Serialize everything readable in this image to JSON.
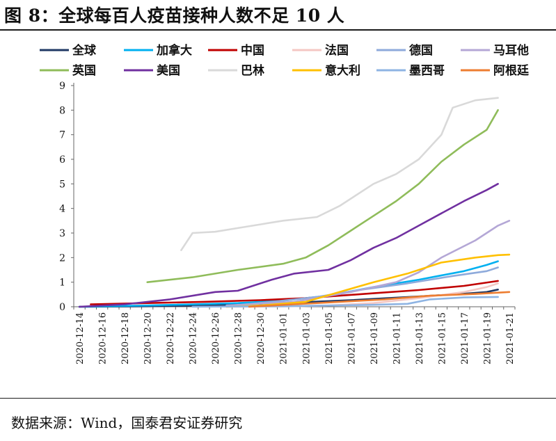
{
  "title": "图 8：全球每百人疫苗接种人数不足 10 人",
  "source": "数据来源：Wind，国泰君安证券研究",
  "chart_data": {
    "type": "line",
    "x_ticks": [
      "2020-12-14",
      "2020-12-16",
      "2020-12-18",
      "2020-12-20",
      "2020-12-22",
      "2020-12-24",
      "2020-12-26",
      "2020-12-28",
      "2020-12-30",
      "2021-01-01",
      "2021-01-03",
      "2021-01-05",
      "2021-01-07",
      "2021-01-09",
      "2021-01-11",
      "2021-01-13",
      "2021-01-15",
      "2021-01-17",
      "2021-01-19",
      "2021-01-21"
    ],
    "ylim": [
      0,
      9
    ],
    "y_ticks": [
      "0",
      "1",
      "2",
      "3",
      "4",
      "5",
      "6",
      "7",
      "8",
      "9"
    ],
    "legend_position": "top",
    "series": [
      {
        "name": "全球",
        "color": "#1f3864",
        "points": [
          [
            "2020-12-14",
            0.0
          ],
          [
            "2020-12-20",
            0.02
          ],
          [
            "2020-12-26",
            0.06
          ],
          [
            "2021-01-01",
            0.15
          ],
          [
            "2021-01-07",
            0.27
          ],
          [
            "2021-01-13",
            0.42
          ],
          [
            "2021-01-17",
            0.53
          ],
          [
            "2021-01-19",
            0.6
          ],
          [
            "2021-01-20",
            0.7
          ]
        ]
      },
      {
        "name": "加拿大",
        "color": "#00b0f0",
        "points": [
          [
            "2020-12-14",
            0.0
          ],
          [
            "2020-12-16",
            0.02
          ],
          [
            "2020-12-20",
            0.05
          ],
          [
            "2020-12-24",
            0.1
          ],
          [
            "2020-12-28",
            0.15
          ],
          [
            "2021-01-01",
            0.25
          ],
          [
            "2021-01-05",
            0.45
          ],
          [
            "2021-01-09",
            0.8
          ],
          [
            "2021-01-13",
            1.1
          ],
          [
            "2021-01-17",
            1.45
          ],
          [
            "2021-01-19",
            1.7
          ],
          [
            "2021-01-20",
            1.85
          ]
        ]
      },
      {
        "name": "中国",
        "color": "#c00000",
        "points": [
          [
            "2020-12-15",
            0.1
          ],
          [
            "2020-12-20",
            0.15
          ],
          [
            "2020-12-25",
            0.2
          ],
          [
            "2020-12-30",
            0.27
          ],
          [
            "2021-01-03",
            0.35
          ],
          [
            "2021-01-09",
            0.55
          ],
          [
            "2021-01-13",
            0.68
          ],
          [
            "2021-01-17",
            0.85
          ],
          [
            "2021-01-20",
            1.05
          ]
        ]
      },
      {
        "name": "法国",
        "color": "#f4c7c3",
        "points": [
          [
            "2020-12-27",
            0.0
          ],
          [
            "2021-01-01",
            0.01
          ],
          [
            "2021-01-05",
            0.05
          ],
          [
            "2021-01-09",
            0.15
          ],
          [
            "2021-01-13",
            0.35
          ],
          [
            "2021-01-17",
            0.6
          ],
          [
            "2021-01-19",
            0.8
          ],
          [
            "2021-01-20",
            0.95
          ]
        ]
      },
      {
        "name": "德国",
        "color": "#8eaadb",
        "points": [
          [
            "2020-12-27",
            0.02
          ],
          [
            "2020-12-31",
            0.2
          ],
          [
            "2021-01-04",
            0.4
          ],
          [
            "2021-01-08",
            0.7
          ],
          [
            "2021-01-12",
            0.95
          ],
          [
            "2021-01-16",
            1.25
          ],
          [
            "2021-01-19",
            1.45
          ],
          [
            "2021-01-20",
            1.6
          ]
        ]
      },
      {
        "name": "马耳他",
        "color": "#b4a7d6",
        "points": [
          [
            "2020-12-27",
            0.05
          ],
          [
            "2021-01-02",
            0.2
          ],
          [
            "2021-01-07",
            0.6
          ],
          [
            "2021-01-11",
            1.0
          ],
          [
            "2021-01-13",
            1.4
          ],
          [
            "2021-01-15",
            2.0
          ],
          [
            "2021-01-18",
            2.7
          ],
          [
            "2021-01-20",
            3.3
          ],
          [
            "2021-01-21",
            3.5
          ]
        ]
      },
      {
        "name": "英国",
        "color": "#8fbc5a",
        "points": [
          [
            "2020-12-20",
            1.0
          ],
          [
            "2020-12-24",
            1.2
          ],
          [
            "2020-12-28",
            1.5
          ],
          [
            "2021-01-01",
            1.75
          ],
          [
            "2021-01-03",
            2.0
          ],
          [
            "2021-01-05",
            2.5
          ],
          [
            "2021-01-07",
            3.1
          ],
          [
            "2021-01-09",
            3.7
          ],
          [
            "2021-01-11",
            4.3
          ],
          [
            "2021-01-13",
            5.0
          ],
          [
            "2021-01-15",
            5.9
          ],
          [
            "2021-01-17",
            6.6
          ],
          [
            "2021-01-19",
            7.2
          ],
          [
            "2021-01-20",
            8.0
          ]
        ]
      },
      {
        "name": "美国",
        "color": "#7030a0",
        "points": [
          [
            "2020-12-14",
            0.0
          ],
          [
            "2020-12-18",
            0.1
          ],
          [
            "2020-12-22",
            0.3
          ],
          [
            "2020-12-26",
            0.6
          ],
          [
            "2020-12-28",
            0.65
          ],
          [
            "2020-12-31",
            1.1
          ],
          [
            "2021-01-02",
            1.35
          ],
          [
            "2021-01-05",
            1.5
          ],
          [
            "2021-01-07",
            1.9
          ],
          [
            "2021-01-09",
            2.4
          ],
          [
            "2021-01-11",
            2.8
          ],
          [
            "2021-01-13",
            3.3
          ],
          [
            "2021-01-15",
            3.8
          ],
          [
            "2021-01-17",
            4.3
          ],
          [
            "2021-01-19",
            4.75
          ],
          [
            "2021-01-20",
            5.0
          ]
        ]
      },
      {
        "name": "巴林",
        "color": "#d9d9d9",
        "points": [
          [
            "2020-12-23",
            2.3
          ],
          [
            "2020-12-24",
            3.0
          ],
          [
            "2020-12-26",
            3.05
          ],
          [
            "2020-12-28",
            3.2
          ],
          [
            "2020-12-30",
            3.35
          ],
          [
            "2021-01-01",
            3.5
          ],
          [
            "2021-01-04",
            3.65
          ],
          [
            "2021-01-06",
            4.1
          ],
          [
            "2021-01-09",
            5.0
          ],
          [
            "2021-01-11",
            5.4
          ],
          [
            "2021-01-13",
            6.0
          ],
          [
            "2021-01-15",
            7.0
          ],
          [
            "2021-01-16",
            8.1
          ],
          [
            "2021-01-18",
            8.4
          ],
          [
            "2021-01-20",
            8.5
          ]
        ]
      },
      {
        "name": "意大利",
        "color": "#ffc000",
        "points": [
          [
            "2020-12-27",
            0.0
          ],
          [
            "2020-12-30",
            0.05
          ],
          [
            "2021-01-03",
            0.2
          ],
          [
            "2021-01-06",
            0.6
          ],
          [
            "2021-01-09",
            1.0
          ],
          [
            "2021-01-12",
            1.35
          ],
          [
            "2021-01-15",
            1.8
          ],
          [
            "2021-01-18",
            2.0
          ],
          [
            "2021-01-20",
            2.1
          ],
          [
            "2021-01-21",
            2.12
          ]
        ]
      },
      {
        "name": "墨西哥",
        "color": "#8eb4e3",
        "points": [
          [
            "2020-12-24",
            0.0
          ],
          [
            "2020-12-28",
            0.01
          ],
          [
            "2021-01-01",
            0.02
          ],
          [
            "2021-01-05",
            0.05
          ],
          [
            "2021-01-09",
            0.08
          ],
          [
            "2021-01-12",
            0.12
          ],
          [
            "2021-01-14",
            0.3
          ],
          [
            "2021-01-17",
            0.38
          ],
          [
            "2021-01-20",
            0.4
          ]
        ]
      },
      {
        "name": "阿根廷",
        "color": "#ed7d31",
        "points": [
          [
            "2020-12-29",
            0.0
          ],
          [
            "2021-01-02",
            0.1
          ],
          [
            "2021-01-06",
            0.2
          ],
          [
            "2021-01-10",
            0.3
          ],
          [
            "2021-01-14",
            0.45
          ],
          [
            "2021-01-18",
            0.52
          ],
          [
            "2021-01-21",
            0.6
          ]
        ]
      }
    ]
  }
}
